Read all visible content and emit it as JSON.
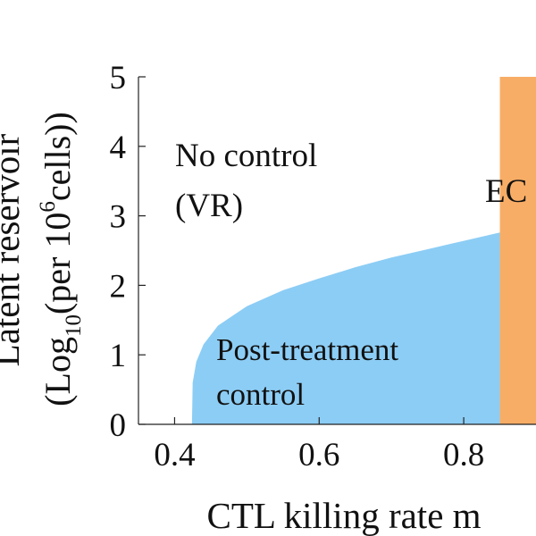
{
  "chart_data": {
    "type": "area",
    "xlabel": "CTL killing rate m",
    "ylabel_line1": "Latent reservoir",
    "ylabel_line2": {
      "open": "(Log",
      "sub": "10",
      "mid": "(per 10",
      "sup": "6",
      "close": "cells))"
    },
    "xlim": [
      0.35,
      0.9
    ],
    "ylim": [
      0,
      5
    ],
    "x_ticks": [
      0.4,
      0.6,
      0.8
    ],
    "x_tick_labels": [
      "0.4",
      "0.6",
      "0.8"
    ],
    "y_ticks": [
      0,
      1,
      2,
      3,
      4,
      5
    ],
    "y_tick_labels": [
      "0",
      "1",
      "2",
      "3",
      "4",
      "5"
    ],
    "regions": [
      {
        "name": "post-treatment-control",
        "color": "#8ccdf5",
        "boundary_x": [
          0.424,
          0.425,
          0.43,
          0.44,
          0.46,
          0.5,
          0.55,
          0.6,
          0.65,
          0.7,
          0.75,
          0.8,
          0.85
        ],
        "boundary_y": [
          0.0,
          0.6,
          0.9,
          1.15,
          1.42,
          1.7,
          1.93,
          2.1,
          2.26,
          2.4,
          2.52,
          2.64,
          2.76
        ]
      },
      {
        "name": "ec",
        "color": "#f8ad66",
        "x_from": 0.85,
        "x_to": 0.9
      }
    ],
    "annotations": {
      "no_control_line1": "No control",
      "no_control_line2": "(VR)",
      "ptc_line1": "Post-treatment",
      "ptc_line2": "control",
      "ec": "EC"
    }
  }
}
